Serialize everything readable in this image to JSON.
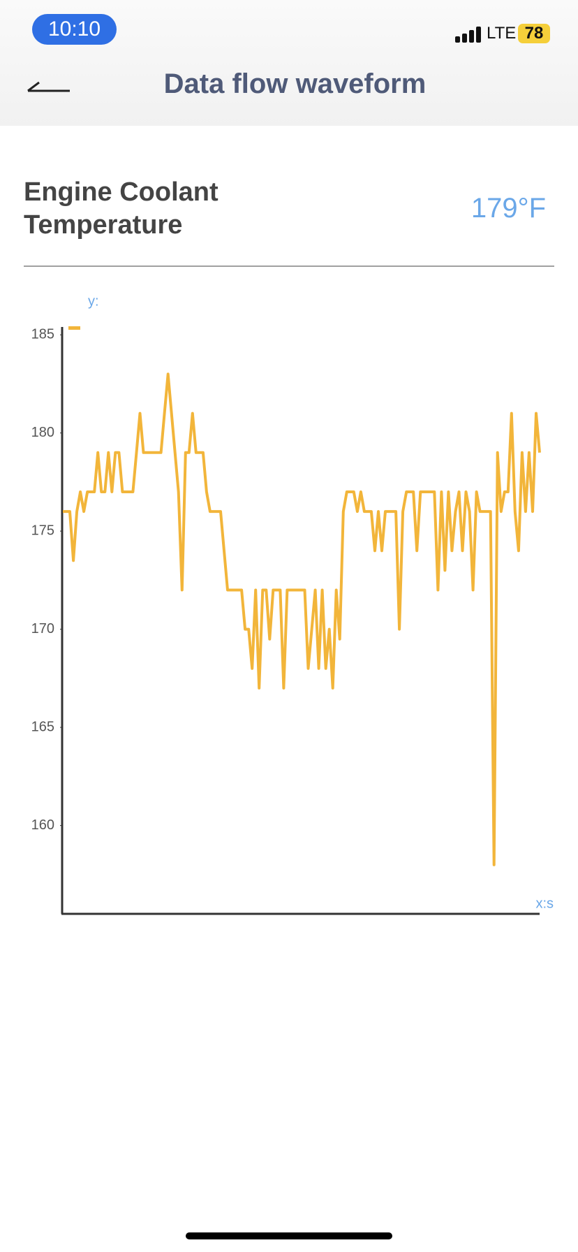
{
  "status_bar": {
    "time": "10:10",
    "network": "LTE",
    "battery": "78"
  },
  "header": {
    "title": "Data flow waveform"
  },
  "reading": {
    "label": "Engine Coolant Temperature",
    "value": "179°F"
  },
  "chart_data": {
    "type": "line",
    "y_label": "y:",
    "x_label": "x:s",
    "color": "#f2b53a",
    "ylim": [
      155.5,
      185.4
    ],
    "yticks": [
      160,
      165,
      170,
      175,
      180,
      185
    ],
    "values": [
      176,
      176,
      176,
      173.5,
      176,
      177,
      176,
      177,
      177,
      177,
      179,
      177,
      177,
      179,
      177,
      179,
      179,
      177,
      177,
      177,
      177,
      179,
      181,
      179,
      179,
      179,
      179,
      179,
      179,
      181,
      183,
      181,
      179,
      177,
      172,
      179,
      179,
      181,
      179,
      179,
      179,
      177,
      176,
      176,
      176,
      176,
      174,
      172,
      172,
      172,
      172,
      172,
      170,
      170,
      168,
      172,
      167,
      172,
      172,
      169.5,
      172,
      172,
      172,
      167,
      172,
      172,
      172,
      172,
      172,
      172,
      168,
      170,
      172,
      168,
      172,
      168,
      170,
      167,
      172,
      169.5,
      176,
      177,
      177,
      177,
      176,
      177,
      176,
      176,
      176,
      174,
      176,
      174,
      176,
      176,
      176,
      176,
      170,
      176,
      177,
      177,
      177,
      174,
      177,
      177,
      177,
      177,
      177,
      172,
      177,
      173,
      177,
      174,
      176,
      177,
      174,
      177,
      176,
      172,
      177,
      176,
      176,
      176,
      176,
      158,
      179,
      176,
      177,
      177,
      181,
      176,
      174,
      179,
      176,
      179,
      176,
      181,
      179
    ]
  }
}
